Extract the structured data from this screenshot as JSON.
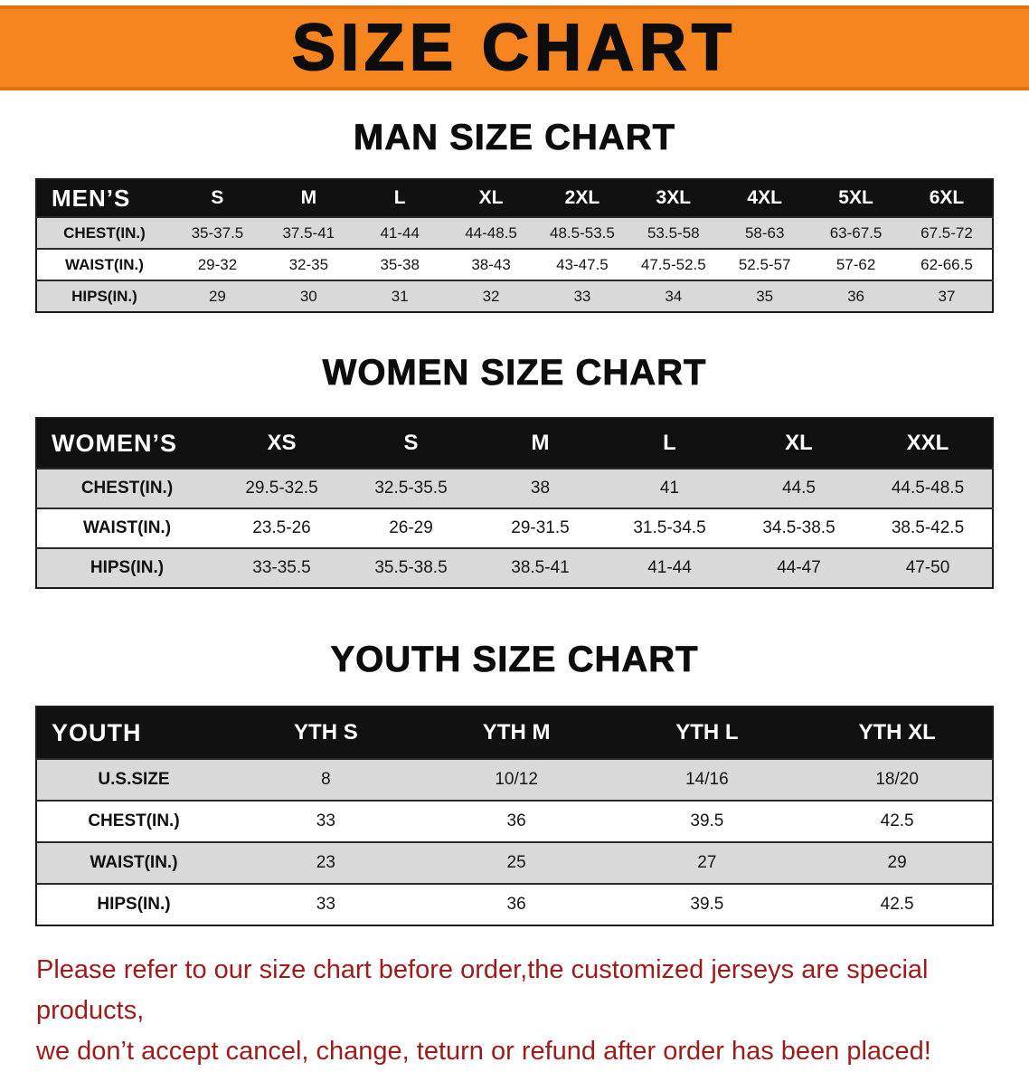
{
  "banner": {
    "title": "SIZE CHART"
  },
  "sections": [
    {
      "id": "men",
      "heading": "MAN SIZE CHART",
      "table": {
        "header": [
          "MEN’S",
          "S",
          "M",
          "L",
          "XL",
          "2XL",
          "3XL",
          "4XL",
          "5XL",
          "6XL"
        ],
        "rows": [
          [
            "CHEST(IN.)",
            "35-37.5",
            "37.5-41",
            "41-44",
            "44-48.5",
            "48.5-53.5",
            "53.5-58",
            "58-63",
            "63-67.5",
            "67.5-72"
          ],
          [
            "WAIST(IN.)",
            "29-32",
            "32-35",
            "35-38",
            "38-43",
            "43-47.5",
            "47.5-52.5",
            "52.5-57",
            "57-62",
            "62-66.5"
          ],
          [
            "HIPS(IN.)",
            "29",
            "30",
            "31",
            "32",
            "33",
            "34",
            "35",
            "36",
            "37"
          ]
        ]
      }
    },
    {
      "id": "women",
      "heading": "WOMEN SIZE CHART",
      "table": {
        "header": [
          "WOMEN’S",
          "XS",
          "S",
          "M",
          "L",
          "XL",
          "XXL"
        ],
        "rows": [
          [
            "CHEST(IN.)",
            "29.5-32.5",
            "32.5-35.5",
            "38",
            "41",
            "44.5",
            "44.5-48.5"
          ],
          [
            "WAIST(IN.)",
            "23.5-26",
            "26-29",
            "29-31.5",
            "31.5-34.5",
            "34.5-38.5",
            "38.5-42.5"
          ],
          [
            "HIPS(IN.)",
            "33-35.5",
            "35.5-38.5",
            "38.5-41",
            "41-44",
            "44-47",
            "47-50"
          ]
        ]
      }
    },
    {
      "id": "youth",
      "heading": "YOUTH SIZE CHART",
      "table": {
        "header": [
          "YOUTH",
          "YTH S",
          "YTH M",
          "YTH L",
          "YTH XL"
        ],
        "rows": [
          [
            "U.S.SIZE",
            "8",
            "10/12",
            "14/16",
            "18/20"
          ],
          [
            "CHEST(IN.)",
            "33",
            "36",
            "39.5",
            "42.5"
          ],
          [
            "WAIST(IN.)",
            "23",
            "25",
            "27",
            "29"
          ],
          [
            "HIPS(IN.)",
            "33",
            "36",
            "39.5",
            "42.5"
          ]
        ]
      }
    }
  ],
  "footer": {
    "line1": "Please refer to our size chart before order,the customized jerseys are special products,",
    "line2": "we don’t accept cancel, change, teturn or refund after order has been placed!"
  },
  "colors": {
    "banner_orange": "#f6851f",
    "banner_border": "#e2720e",
    "header_black": "#111111",
    "row_gray": "#d9d9d9",
    "notice_red": "#9e1b1b"
  }
}
